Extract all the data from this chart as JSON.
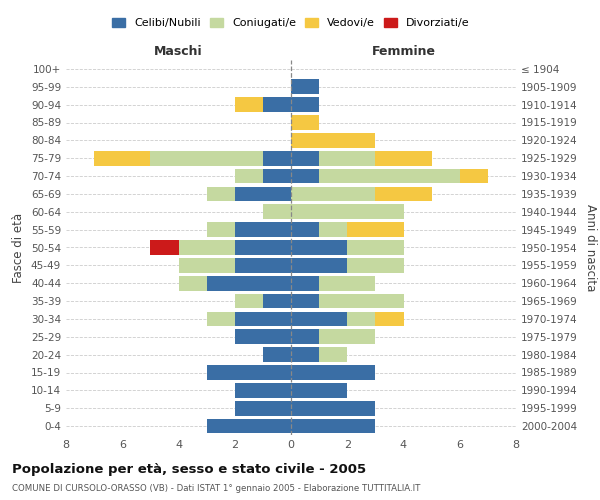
{
  "age_groups": [
    "100+",
    "95-99",
    "90-94",
    "85-89",
    "80-84",
    "75-79",
    "70-74",
    "65-69",
    "60-64",
    "55-59",
    "50-54",
    "45-49",
    "40-44",
    "35-39",
    "30-34",
    "25-29",
    "20-24",
    "15-19",
    "10-14",
    "5-9",
    "0-4"
  ],
  "birth_years": [
    "≤ 1904",
    "1905-1909",
    "1910-1914",
    "1915-1919",
    "1920-1924",
    "1925-1929",
    "1930-1934",
    "1935-1939",
    "1940-1944",
    "1945-1949",
    "1950-1954",
    "1955-1959",
    "1960-1964",
    "1965-1969",
    "1970-1974",
    "1975-1979",
    "1980-1984",
    "1985-1989",
    "1990-1994",
    "1995-1999",
    "2000-2004"
  ],
  "maschi": {
    "celibi": [
      0,
      0,
      1,
      0,
      0,
      1,
      1,
      2,
      0,
      2,
      2,
      2,
      3,
      1,
      2,
      2,
      1,
      3,
      2,
      2,
      3
    ],
    "coniugati": [
      0,
      0,
      0,
      0,
      0,
      4,
      1,
      1,
      1,
      1,
      2,
      2,
      1,
      1,
      1,
      0,
      0,
      0,
      0,
      0,
      0
    ],
    "vedovi": [
      0,
      0,
      1,
      0,
      0,
      2,
      0,
      0,
      0,
      0,
      0,
      0,
      0,
      0,
      0,
      0,
      0,
      0,
      0,
      0,
      0
    ],
    "divorziati": [
      0,
      0,
      0,
      0,
      0,
      0,
      0,
      0,
      0,
      0,
      1,
      0,
      0,
      0,
      0,
      0,
      0,
      0,
      0,
      0,
      0
    ]
  },
  "femmine": {
    "nubili": [
      0,
      1,
      1,
      0,
      0,
      1,
      1,
      0,
      0,
      1,
      2,
      2,
      1,
      1,
      2,
      1,
      1,
      3,
      2,
      3,
      3
    ],
    "coniugate": [
      0,
      0,
      0,
      0,
      0,
      2,
      5,
      3,
      4,
      1,
      2,
      2,
      2,
      3,
      1,
      2,
      1,
      0,
      0,
      0,
      0
    ],
    "vedove": [
      0,
      0,
      0,
      1,
      3,
      2,
      1,
      2,
      0,
      2,
      0,
      0,
      0,
      0,
      1,
      0,
      0,
      0,
      0,
      0,
      0
    ],
    "divorziate": [
      0,
      0,
      0,
      0,
      0,
      0,
      0,
      0,
      0,
      0,
      0,
      0,
      0,
      0,
      0,
      0,
      0,
      0,
      0,
      0,
      0
    ]
  },
  "colors": {
    "celibi_nubili": "#3a6ea5",
    "coniugati": "#c5d9a0",
    "vedovi": "#f5c842",
    "divorziati": "#cc1a1a"
  },
  "title": "Popolazione per età, sesso e stato civile - 2005",
  "subtitle": "COMUNE DI CURSOLO-ORASSO (VB) - Dati ISTAT 1° gennaio 2005 - Elaborazione TUTTITALIA.IT",
  "xlabel_left": "Maschi",
  "xlabel_right": "Femmine",
  "ylabel_left": "Fasce di età",
  "ylabel_right": "Anni di nascita",
  "xlim": 8,
  "legend_labels": [
    "Celibi/Nubili",
    "Coniugati/e",
    "Vedovi/e",
    "Divorziati/e"
  ],
  "background_color": "#ffffff",
  "grid_color": "#cccccc",
  "bar_height": 0.82
}
